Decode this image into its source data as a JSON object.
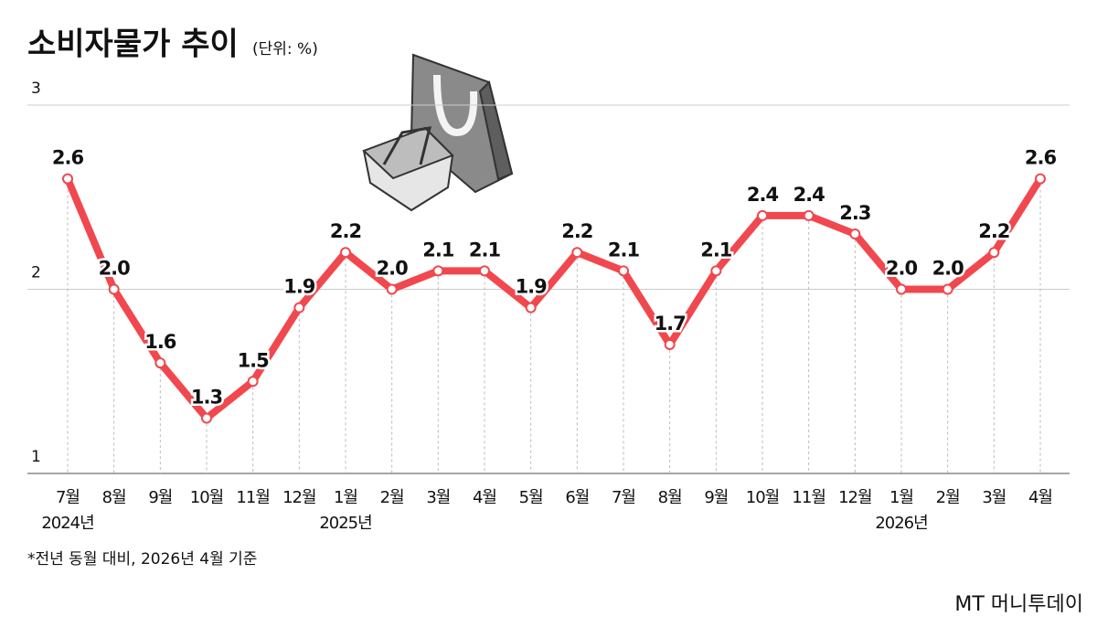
{
  "chart_data": {
    "type": "line",
    "title": "소비자물가 추이",
    "subtitle": "(단위: %)",
    "categories": [
      "7월",
      "8월",
      "9월",
      "10월",
      "11월",
      "12월",
      "1월",
      "2월",
      "3월",
      "4월",
      "5월",
      "6월",
      "7월",
      "8월",
      "9월",
      "10월",
      "11월",
      "12월",
      "1월",
      "2월",
      "3월",
      "4월"
    ],
    "years": [
      "2024년",
      null,
      null,
      null,
      null,
      null,
      "2025년",
      null,
      null,
      null,
      null,
      null,
      null,
      null,
      null,
      null,
      null,
      null,
      "2026년",
      null,
      null,
      null
    ],
    "values": [
      2.6,
      2.0,
      1.6,
      1.3,
      1.5,
      1.9,
      2.2,
      2.0,
      2.1,
      2.1,
      1.9,
      2.2,
      2.1,
      1.7,
      2.1,
      2.4,
      2.4,
      2.3,
      2.0,
      2.0,
      2.2,
      2.6
    ],
    "value_labels": [
      "2.6",
      "2.0",
      "1.6",
      "1.3",
      "1.5",
      "1.9",
      "2.2",
      "2.0",
      "2.1",
      "2.1",
      "1.9",
      "2.2",
      "2.1",
      "1.7",
      "2.1",
      "2.4",
      "2.4",
      "2.3",
      "2.0",
      "2.0",
      "2.2",
      "2.6"
    ],
    "color": "#f0484e",
    "ylim": [
      1,
      3
    ],
    "yticks": [
      1,
      2,
      3
    ],
    "grid": true,
    "footnote": "*전년 동월 대비, 2026년 4월 기준",
    "source": "MT 머니투데이"
  }
}
